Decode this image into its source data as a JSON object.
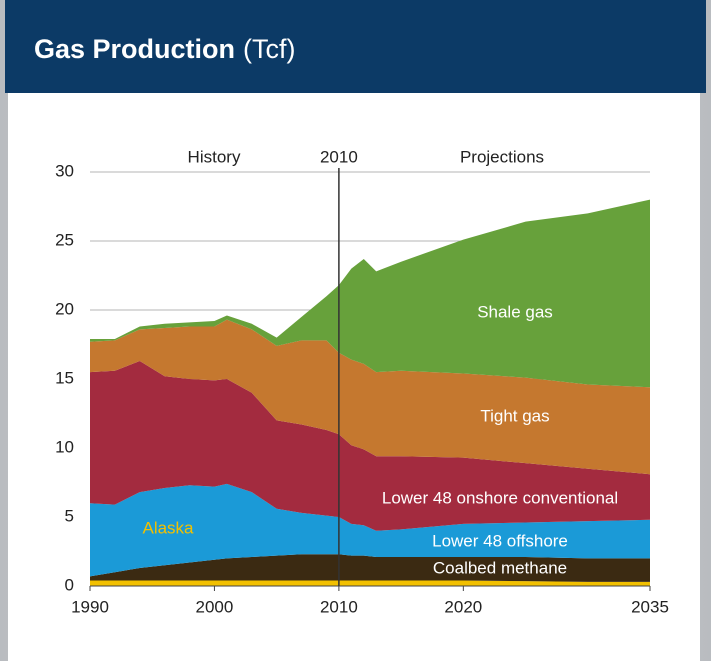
{
  "chart_data": {
    "type": "stacked-area",
    "title": "Gas Production",
    "title_unit": "(Tcf)",
    "annotations": [
      "History",
      "2010",
      "Projections"
    ],
    "divider": 2010,
    "x": [
      1990,
      1992,
      1994,
      1996,
      1998,
      2000,
      2001,
      2003,
      2005,
      2007,
      2009,
      2010,
      2011,
      2012,
      2013,
      2015,
      2020,
      2025,
      2030,
      2035
    ],
    "series": [
      {
        "name": "Alaska",
        "color": "#f2c000",
        "values": [
          0.4,
          0.4,
          0.4,
          0.4,
          0.4,
          0.4,
          0.4,
          0.4,
          0.4,
          0.4,
          0.4,
          0.4,
          0.4,
          0.4,
          0.4,
          0.4,
          0.4,
          0.35,
          0.3,
          0.3
        ]
      },
      {
        "name": "Coalbed methane",
        "color": "#3b2a12",
        "values": [
          0.3,
          0.6,
          0.9,
          1.1,
          1.3,
          1.5,
          1.6,
          1.7,
          1.8,
          1.9,
          1.9,
          1.9,
          1.8,
          1.8,
          1.7,
          1.7,
          1.7,
          1.75,
          1.7,
          1.7
        ]
      },
      {
        "name": "Lower 48 offshore",
        "color": "#1b9ad7",
        "values": [
          5.3,
          4.9,
          5.5,
          5.6,
          5.6,
          5.3,
          5.4,
          4.7,
          3.4,
          3.0,
          2.8,
          2.7,
          2.3,
          2.2,
          1.9,
          2.0,
          2.4,
          2.5,
          2.7,
          2.8
        ]
      },
      {
        "name": "Lower 48 onshore conventional",
        "color": "#a32b3f",
        "values": [
          9.5,
          9.7,
          9.5,
          8.1,
          7.7,
          7.7,
          7.6,
          7.2,
          6.4,
          6.4,
          6.2,
          6.0,
          5.7,
          5.5,
          5.4,
          5.3,
          4.8,
          4.3,
          3.8,
          3.3
        ]
      },
      {
        "name": "Tight gas",
        "color": "#c5782f",
        "values": [
          2.2,
          2.2,
          2.3,
          3.5,
          3.8,
          3.9,
          4.3,
          4.6,
          5.4,
          6.1,
          6.5,
          5.9,
          6.2,
          6.2,
          6.1,
          6.2,
          6.1,
          6.2,
          6.1,
          6.3
        ]
      },
      {
        "name": "Shale gas",
        "color": "#67a13b",
        "values": [
          0.2,
          0.1,
          0.2,
          0.3,
          0.3,
          0.4,
          0.3,
          0.4,
          0.6,
          1.7,
          3.2,
          4.9,
          6.6,
          7.6,
          7.3,
          7.9,
          9.7,
          11.3,
          12.4,
          13.6
        ]
      }
    ],
    "xlim": [
      1990,
      2035
    ],
    "xticks": [
      1990,
      2000,
      2010,
      2020,
      2035
    ],
    "ylim": [
      0,
      30
    ],
    "yticks": [
      0,
      5,
      10,
      15,
      20,
      25,
      30
    ],
    "grid": true
  }
}
